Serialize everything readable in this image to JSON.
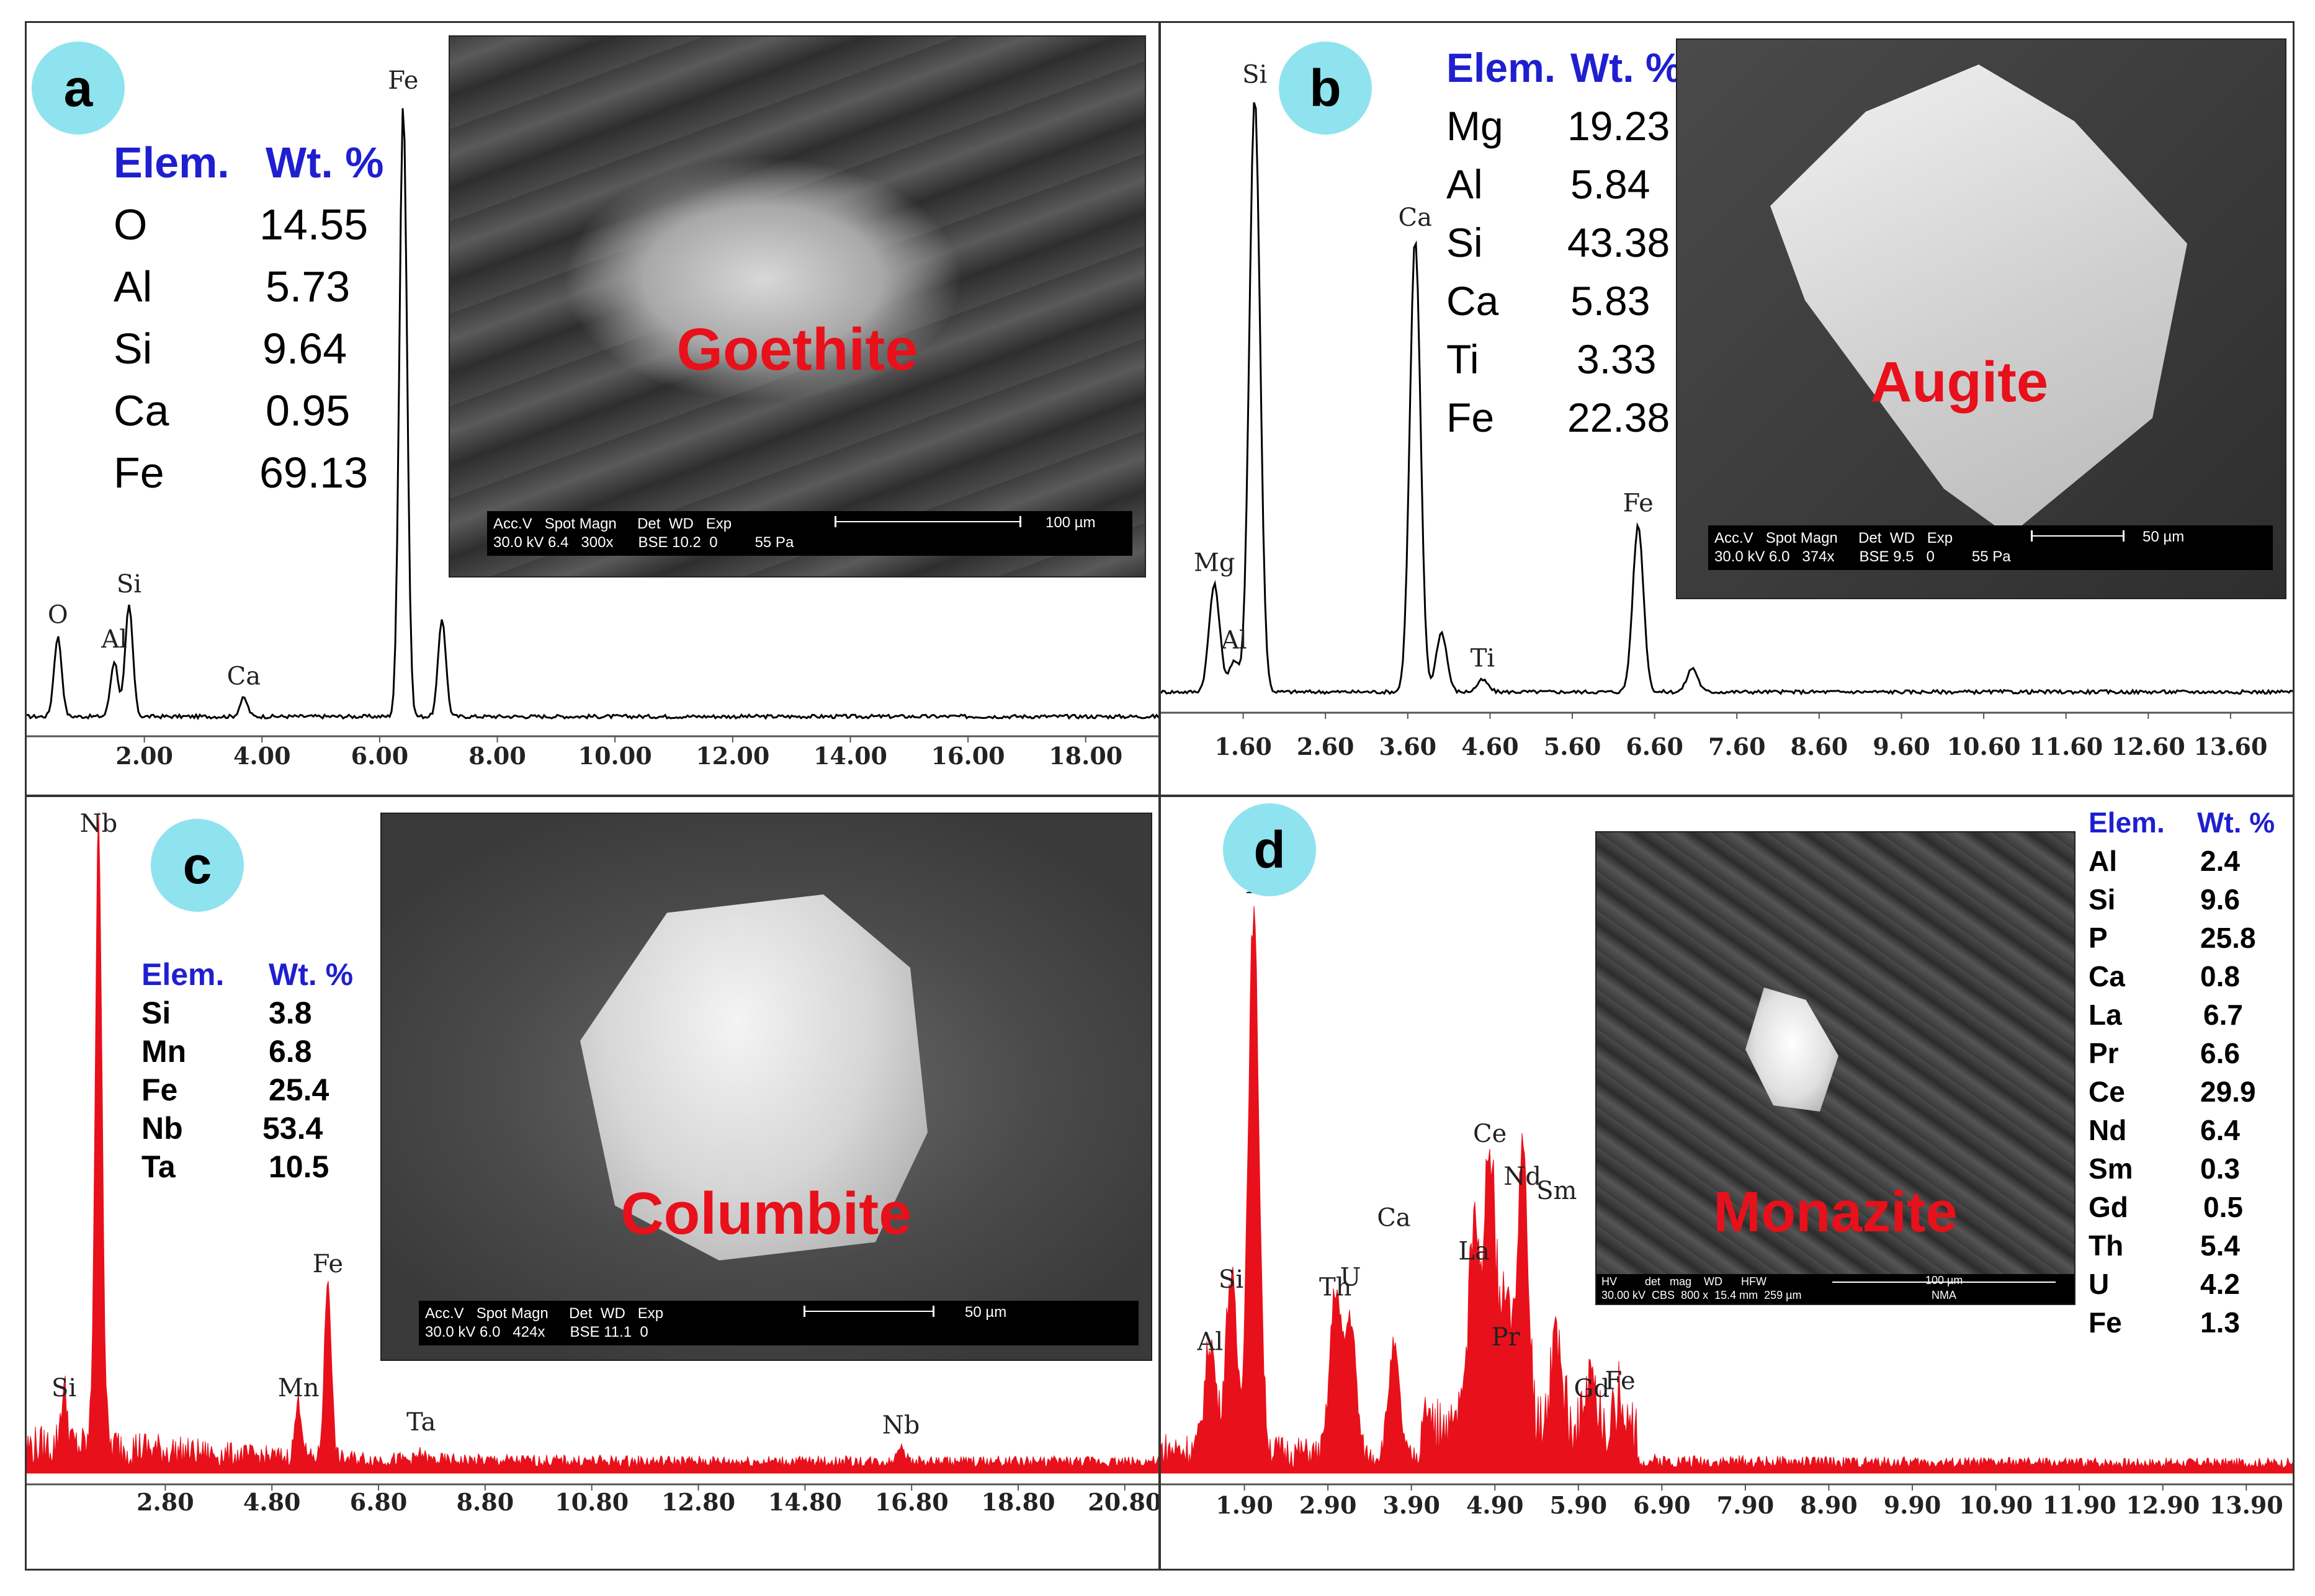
{
  "colors": {
    "black_spectrum": "#000000",
    "red_spectrum": "#e8101a",
    "table_header": "#1f1fd0",
    "badge": "#8fe3ee"
  },
  "panels": {
    "a": {
      "badge": "a",
      "table": {
        "header": [
          "Elem.",
          "Wt. %"
        ],
        "rows": [
          [
            "O",
            "14.55"
          ],
          [
            "Al",
            "5.73"
          ],
          [
            "Si",
            "9.64"
          ],
          [
            "Ca",
            "0.95"
          ],
          [
            "Fe",
            "69.13"
          ]
        ]
      },
      "inset": {
        "mineral": "Goethite",
        "info_line1": "Acc.V   Spot Magn     Det  WD   Exp",
        "info_line2": "30.0 kV 6.4   300x      BSE 10.2  0         55 Pa",
        "scale_label": "100 µm"
      }
    },
    "b": {
      "badge": "b",
      "table": {
        "header": [
          "Elem.",
          "Wt. %"
        ],
        "rows": [
          [
            "Mg",
            "19.23"
          ],
          [
            "Al",
            "5.84"
          ],
          [
            "Si",
            "43.38"
          ],
          [
            "Ca",
            "5.83"
          ],
          [
            "Ti",
            "3.33"
          ],
          [
            "Fe",
            "22.38"
          ]
        ]
      },
      "inset": {
        "mineral": "Augite",
        "info_line1": "Acc.V   Spot Magn     Det  WD   Exp",
        "info_line2": "30.0 kV 6.0   374x      BSE 9.5   0         55 Pa",
        "scale_label": "50 µm"
      }
    },
    "c": {
      "badge": "c",
      "table": {
        "header": [
          "Elem.",
          "Wt. %"
        ],
        "rows": [
          [
            "Si",
            "3.8"
          ],
          [
            "Mn",
            "6.8"
          ],
          [
            "Fe",
            "25.4"
          ],
          [
            "Nb",
            "53.4"
          ],
          [
            "Ta",
            "10.5"
          ]
        ]
      },
      "inset": {
        "mineral": "Columbite",
        "info_line1": "Acc.V   Spot Magn     Det  WD   Exp",
        "info_line2": "30.0 kV 6.0   424x      BSE 11.1  0",
        "scale_label": "50 µm"
      }
    },
    "d": {
      "badge": "d",
      "table": {
        "header": [
          "Elem.",
          "Wt. %"
        ],
        "rows": [
          [
            "Al",
            "2.4"
          ],
          [
            "Si",
            "9.6"
          ],
          [
            "P",
            "25.8"
          ],
          [
            "Ca",
            "0.8"
          ],
          [
            "La",
            "6.7"
          ],
          [
            "Pr",
            "6.6"
          ],
          [
            "Ce",
            "29.9"
          ],
          [
            "Nd",
            "6.4"
          ],
          [
            "Sm",
            "0.3"
          ],
          [
            "Gd",
            "0.5"
          ],
          [
            "Th",
            "5.4"
          ],
          [
            "U",
            "4.2"
          ],
          [
            "Fe",
            "1.3"
          ]
        ]
      },
      "inset": {
        "mineral": "Monazite",
        "info_line1": "HV         det   mag    WD      HFW",
        "info_line2": "30.00 kV  CBS  800 x  15.4 mm  259 µm",
        "info_center": "NMA",
        "scale_label": "100 µm"
      }
    }
  },
  "chart_data": [
    {
      "type": "line",
      "panel": "a",
      "color": "black",
      "xlim": [
        0,
        19.3
      ],
      "ylim": [
        0,
        1
      ],
      "xticks": [
        2.0,
        4.0,
        6.0,
        8.0,
        10.0,
        12.0,
        14.0,
        16.0,
        18.0
      ],
      "xtick_labels": [
        "2.00",
        "4.00",
        "6.00",
        "8.00",
        "10.00",
        "12.00",
        "14.00",
        "16.00",
        "18.00"
      ],
      "peaks": [
        {
          "label": "O",
          "x": 0.53,
          "y": 0.13
        },
        {
          "label": "Al",
          "x": 1.49,
          "y": 0.09
        },
        {
          "label": "Si",
          "x": 1.74,
          "y": 0.18
        },
        {
          "label": "Ca",
          "x": 3.69,
          "y": 0.03
        },
        {
          "label": "Fe",
          "x": 6.4,
          "y": 1.0
        },
        {
          "label": "",
          "x": 7.06,
          "y": 0.16
        }
      ]
    },
    {
      "type": "line",
      "panel": "b",
      "color": "black",
      "xlim": [
        0.6,
        14.4
      ],
      "ylim": [
        0,
        1
      ],
      "xticks": [
        1.6,
        2.6,
        3.6,
        4.6,
        5.6,
        6.6,
        7.6,
        8.6,
        9.6,
        10.6,
        11.6,
        12.6,
        13.6
      ],
      "xtick_labels": [
        "1.60",
        "2.60",
        "3.60",
        "4.60",
        "5.60",
        "6.60",
        "7.60",
        "8.60",
        "9.60",
        "10.60",
        "11.60",
        "12.60",
        "13.60"
      ],
      "peaks": [
        {
          "label": "Mg",
          "x": 1.25,
          "y": 0.18
        },
        {
          "label": "Al",
          "x": 1.49,
          "y": 0.05
        },
        {
          "label": "Si",
          "x": 1.74,
          "y": 1.0
        },
        {
          "label": "Ca",
          "x": 3.69,
          "y": 0.76
        },
        {
          "label": "",
          "x": 4.01,
          "y": 0.1
        },
        {
          "label": "Ti",
          "x": 4.51,
          "y": 0.02
        },
        {
          "label": "Fe",
          "x": 6.4,
          "y": 0.28
        },
        {
          "label": "",
          "x": 7.06,
          "y": 0.04
        }
      ]
    },
    {
      "type": "area",
      "panel": "c",
      "color": "red",
      "xlim": [
        0.2,
        21.5
      ],
      "ylim": [
        0,
        1
      ],
      "xticks": [
        2.8,
        4.8,
        6.8,
        8.8,
        10.8,
        12.8,
        14.8,
        16.8,
        18.8,
        20.8
      ],
      "xtick_labels": [
        "2.80",
        "4.80",
        "6.80",
        "8.80",
        "10.80",
        "12.80",
        "14.80",
        "16.80",
        "18.80",
        "20.80"
      ],
      "peaks": [
        {
          "label": "Si",
          "x": 0.9,
          "y": 0.09
        },
        {
          "label": "Nb",
          "x": 1.55,
          "y": 1.0
        },
        {
          "label": "Mn",
          "x": 5.3,
          "y": 0.09
        },
        {
          "label": "Fe",
          "x": 5.85,
          "y": 0.29
        },
        {
          "label": "Ta",
          "x": 7.6,
          "y": 0.01
        },
        {
          "label": "Nb",
          "x": 16.6,
          "y": 0.03
        }
      ]
    },
    {
      "type": "area",
      "panel": "d",
      "color": "red",
      "xlim": [
        0.9,
        14.5
      ],
      "ylim": [
        0,
        1
      ],
      "xticks": [
        1.9,
        2.9,
        3.9,
        4.9,
        5.9,
        6.9,
        7.9,
        8.9,
        9.9,
        10.9,
        11.9,
        12.9,
        13.9
      ],
      "xtick_labels": [
        "1.90",
        "2.90",
        "3.90",
        "4.90",
        "5.90",
        "6.90",
        "7.90",
        "8.90",
        "9.90",
        "10.90",
        "11.90",
        "12.90",
        "13.90"
      ],
      "peaks": [
        {
          "label": "Al",
          "x": 1.49,
          "y": 0.2
        },
        {
          "label": "Si",
          "x": 1.74,
          "y": 0.32
        },
        {
          "label": "P",
          "x": 2.01,
          "y": 0.98
        },
        {
          "label": "Th",
          "x": 2.99,
          "y": 0.3
        },
        {
          "label": "U",
          "x": 3.17,
          "y": 0.25
        },
        {
          "label": "Ca",
          "x": 3.69,
          "y": 0.2
        },
        {
          "label": "La",
          "x": 4.65,
          "y": 0.36
        },
        {
          "label": "Ce",
          "x": 4.84,
          "y": 0.53
        },
        {
          "label": "Pr",
          "x": 5.03,
          "y": 0.22
        },
        {
          "label": "Nd",
          "x": 5.23,
          "y": 0.48
        },
        {
          "label": "Sm",
          "x": 5.64,
          "y": 0.17
        },
        {
          "label": "Gd",
          "x": 6.06,
          "y": 0.08
        },
        {
          "label": "Fe",
          "x": 6.4,
          "y": 0.06
        }
      ]
    }
  ]
}
